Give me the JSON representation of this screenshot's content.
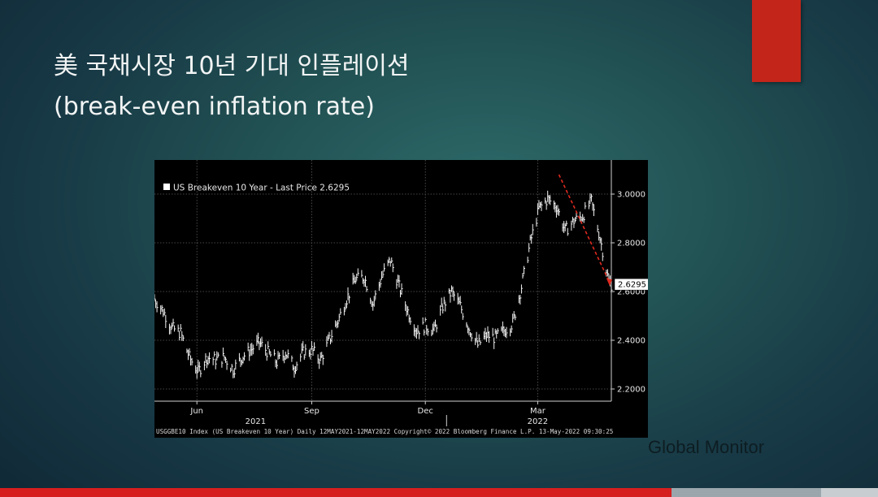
{
  "slide": {
    "title_line1": "美 국채시장 10년 기대 인플레이션",
    "title_line2": "(break-even inflation rate)",
    "brand": "Global Monitor",
    "accent_color": "#c4251a",
    "progress": 0.765
  },
  "chart_data": {
    "type": "line",
    "legend": "US Breakeven 10 Year - Last Price 2.6295",
    "last_price_label": "2.6295",
    "last_price": 2.6295,
    "ylim": [
      2.15,
      3.1
    ],
    "yticks": [
      2.2,
      2.4,
      2.6,
      2.8,
      3.0
    ],
    "ytick_labels": [
      "2.2000",
      "2.4000",
      "2.6000",
      "2.8000",
      "3.0000"
    ],
    "xlim": [
      "2021-05-12",
      "2022-05-13"
    ],
    "xticks": [
      {
        "date": "2021-06-15",
        "label": "Jun"
      },
      {
        "date": "2021-09-15",
        "label": "Sep"
      },
      {
        "date": "2021-12-15",
        "label": "Dec"
      },
      {
        "date": "2022-03-15",
        "label": "Mar"
      }
    ],
    "year_labels": [
      {
        "date": "2021-08-01",
        "label": "2021"
      },
      {
        "date": "2022-03-15",
        "label": "2022"
      }
    ],
    "year_divider": "2022-01-01",
    "footer": "USGGBE10 Index (US Breakeven 10 Year) Daily 12MAY2021-12MAY2022 Copyright© 2022 Bloomberg Finance L.P. 13-May-2022 09:30:25",
    "grid": true,
    "legend_position": "top-left",
    "trend_arrow": {
      "from": [
        "2022-04-01",
        3.08
      ],
      "to": [
        "2022-05-13",
        2.6295
      ],
      "color": "#e02a1f"
    },
    "series": [
      {
        "x": [
          "2021-05-12",
          "2021-05-19",
          "2021-05-26",
          "2021-06-02",
          "2021-06-09",
          "2021-06-16",
          "2021-06-23",
          "2021-06-30",
          "2021-07-07",
          "2021-07-14",
          "2021-07-21",
          "2021-07-28",
          "2021-08-04",
          "2021-08-11",
          "2021-08-18",
          "2021-08-25",
          "2021-09-01",
          "2021-09-08",
          "2021-09-15",
          "2021-09-22",
          "2021-09-29",
          "2021-10-06",
          "2021-10-13",
          "2021-10-20",
          "2021-10-27",
          "2021-11-03",
          "2021-11-10",
          "2021-11-17",
          "2021-11-24",
          "2021-12-01",
          "2021-12-08",
          "2021-12-15",
          "2021-12-22",
          "2021-12-29",
          "2022-01-05",
          "2022-01-12",
          "2022-01-19",
          "2022-01-26",
          "2022-02-02",
          "2022-02-09",
          "2022-02-16",
          "2022-02-23",
          "2022-03-02",
          "2022-03-09",
          "2022-03-16",
          "2022-03-23",
          "2022-03-30",
          "2022-04-06",
          "2022-04-13",
          "2022-04-20",
          "2022-04-27",
          "2022-05-04",
          "2022-05-11"
        ],
        "values": [
          2.57,
          2.52,
          2.45,
          2.43,
          2.33,
          2.27,
          2.33,
          2.32,
          2.33,
          2.28,
          2.33,
          2.36,
          2.39,
          2.35,
          2.31,
          2.35,
          2.29,
          2.35,
          2.36,
          2.32,
          2.4,
          2.48,
          2.57,
          2.65,
          2.66,
          2.55,
          2.66,
          2.73,
          2.62,
          2.52,
          2.44,
          2.46,
          2.44,
          2.54,
          2.6,
          2.54,
          2.45,
          2.38,
          2.42,
          2.41,
          2.44,
          2.47,
          2.62,
          2.8,
          2.94,
          2.98,
          2.95,
          2.85,
          2.89,
          2.91,
          2.97,
          2.82,
          2.64
        ]
      }
    ]
  }
}
